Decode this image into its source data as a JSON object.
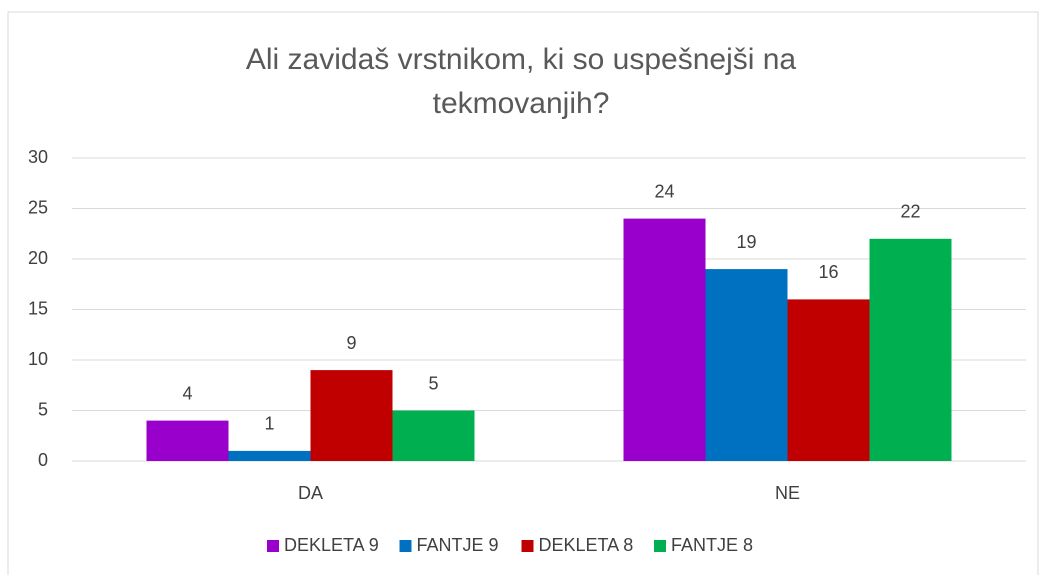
{
  "chart_data": {
    "type": "bar",
    "title": "Ali zavidaš vrstnikom, ki so uspešnejši na tekmovanjih?",
    "categories": [
      "DA",
      "NE"
    ],
    "series": [
      {
        "name": "DEKLETA 9",
        "color": "#9900cc",
        "values": [
          4,
          24
        ]
      },
      {
        "name": "FANTJE 9",
        "color": "#0070c0",
        "values": [
          1,
          19
        ]
      },
      {
        "name": "DEKLETA 8",
        "color": "#c00000",
        "values": [
          9,
          16
        ]
      },
      {
        "name": "FANTJE 8",
        "color": "#00b050",
        "values": [
          5,
          22
        ]
      }
    ],
    "ylim": [
      0,
      30
    ],
    "yticks": [
      0,
      5,
      10,
      15,
      20,
      25,
      30
    ],
    "grid": true,
    "legend": "bottom"
  }
}
